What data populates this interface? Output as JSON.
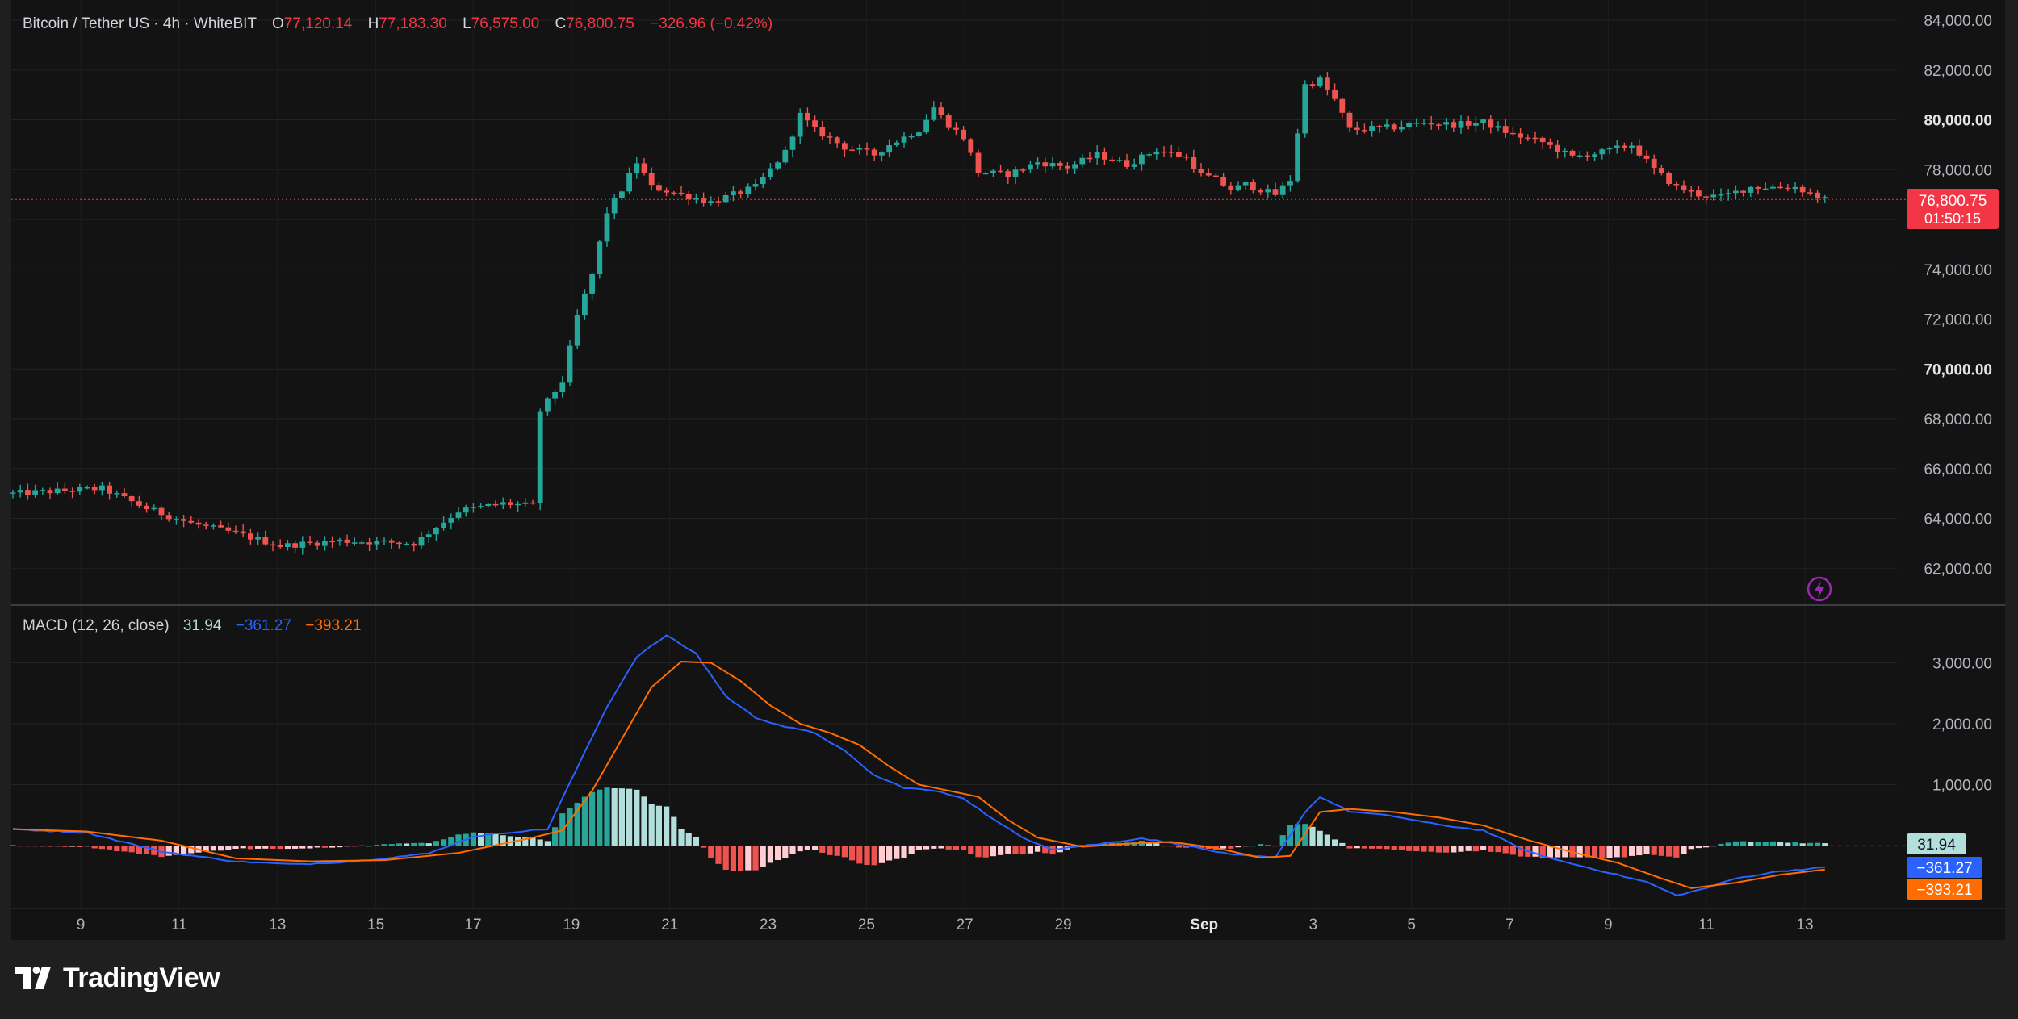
{
  "header": {
    "symbol": "Bitcoin / Tether US · 4h · WhiteBIT",
    "o_label": "O",
    "o_value": "77,120.14",
    "h_label": "H",
    "h_value": "77,183.30",
    "l_label": "L",
    "l_value": "76,575.00",
    "c_label": "C",
    "c_value": "76,800.75",
    "change": "−326.96 (−0.42%)"
  },
  "macd_legend": {
    "title": "MACD (12, 26, close)",
    "hist": "31.94",
    "macd": "−361.27",
    "signal": "−393.21"
  },
  "last_price": {
    "price": "76,800.75",
    "countdown": "01:50:15"
  },
  "macd_badges": {
    "hist": "31.94",
    "macd": "−361.27",
    "signal": "−393.21"
  },
  "brand": {
    "name": "TradingView"
  },
  "colors": {
    "up": "#26a69a",
    "down": "#ef5350",
    "up_light": "#b2dfdb",
    "down_light": "#ffcdd2",
    "macd": "#2962ff",
    "signal": "#ff6d00",
    "price_badge": "#f23645"
  },
  "chart_data": [
    {
      "type": "candlestick",
      "title": "Bitcoin / Tether US · 4h · WhiteBIT",
      "ylim": [
        61000,
        84300
      ],
      "y_ticks": [
        "84,000.00",
        "82,000.00",
        "80,000.00",
        "78,000.00",
        "76,000.00",
        "74,000.00",
        "72,000.00",
        "70,000.00",
        "68,000.00",
        "66,000.00",
        "64,000.00",
        "62,000.00"
      ],
      "x_ticks": [
        "9",
        "11",
        "13",
        "15",
        "17",
        "19",
        "21",
        "23",
        "25",
        "27",
        "29",
        "Sep",
        "3",
        "5",
        "7",
        "9",
        "11",
        "13"
      ],
      "anchors": [
        [
          0,
          65000
        ],
        [
          12,
          65200
        ],
        [
          18,
          64400
        ],
        [
          24,
          63800
        ],
        [
          30,
          63400
        ],
        [
          36,
          62900
        ],
        [
          44,
          63100
        ],
        [
          54,
          63000
        ],
        [
          60,
          64300
        ],
        [
          66,
          64600
        ],
        [
          70,
          64500
        ],
        [
          71,
          68300
        ],
        [
          74,
          69500
        ],
        [
          76,
          72100
        ],
        [
          78,
          73800
        ],
        [
          80,
          76300
        ],
        [
          82,
          77200
        ],
        [
          84,
          78300
        ],
        [
          86,
          77300
        ],
        [
          90,
          77000
        ],
        [
          94,
          76700
        ],
        [
          100,
          77300
        ],
        [
          104,
          78700
        ],
        [
          106,
          80200
        ],
        [
          108,
          79600
        ],
        [
          112,
          78900
        ],
        [
          116,
          78600
        ],
        [
          118,
          79000
        ],
        [
          122,
          79600
        ],
        [
          124,
          80500
        ],
        [
          126,
          79800
        ],
        [
          128,
          79300
        ],
        [
          130,
          77900
        ],
        [
          134,
          77800
        ],
        [
          138,
          78300
        ],
        [
          142,
          78100
        ],
        [
          146,
          78600
        ],
        [
          150,
          78200
        ],
        [
          154,
          78800
        ],
        [
          158,
          78500
        ],
        [
          160,
          77800
        ],
        [
          162,
          77600
        ],
        [
          164,
          77200
        ],
        [
          166,
          77400
        ],
        [
          170,
          77000
        ],
        [
          172,
          77600
        ],
        [
          174,
          81400
        ],
        [
          176,
          81600
        ],
        [
          178,
          80800
        ],
        [
          180,
          79600
        ],
        [
          186,
          79700
        ],
        [
          190,
          79900
        ],
        [
          194,
          79800
        ],
        [
          198,
          79900
        ],
        [
          202,
          79400
        ],
        [
          206,
          79100
        ],
        [
          210,
          78500
        ],
        [
          214,
          78700
        ],
        [
          218,
          79000
        ],
        [
          221,
          78000
        ],
        [
          224,
          77300
        ],
        [
          227,
          77000
        ],
        [
          230,
          76900
        ],
        [
          234,
          77300
        ],
        [
          240,
          77300
        ],
        [
          244,
          76800
        ]
      ]
    },
    {
      "type": "macd",
      "title": "MACD (12, 26, close)",
      "ylim": [
        -1700,
        3650
      ],
      "y_ticks": [
        "3,000.00",
        "2,000.00",
        "1,000.00"
      ],
      "macd_anchors": [
        [
          0,
          270
        ],
        [
          10,
          210
        ],
        [
          20,
          -100
        ],
        [
          30,
          -260
        ],
        [
          38,
          -310
        ],
        [
          46,
          -260
        ],
        [
          56,
          -130
        ],
        [
          62,
          150
        ],
        [
          68,
          230
        ],
        [
          72,
          270
        ],
        [
          76,
          1280
        ],
        [
          80,
          2280
        ],
        [
          84,
          3100
        ],
        [
          88,
          3450
        ],
        [
          92,
          3150
        ],
        [
          96,
          2450
        ],
        [
          100,
          2100
        ],
        [
          104,
          1950
        ],
        [
          108,
          1850
        ],
        [
          112,
          1550
        ],
        [
          116,
          1150
        ],
        [
          120,
          950
        ],
        [
          124,
          900
        ],
        [
          128,
          780
        ],
        [
          132,
          430
        ],
        [
          136,
          130
        ],
        [
          140,
          -60
        ],
        [
          146,
          20
        ],
        [
          152,
          120
        ],
        [
          158,
          0
        ],
        [
          164,
          -150
        ],
        [
          170,
          -200
        ],
        [
          174,
          550
        ],
        [
          176,
          800
        ],
        [
          180,
          560
        ],
        [
          186,
          480
        ],
        [
          192,
          340
        ],
        [
          198,
          250
        ],
        [
          204,
          -100
        ],
        [
          208,
          -240
        ],
        [
          212,
          -360
        ],
        [
          216,
          -480
        ],
        [
          220,
          -600
        ],
        [
          224,
          -820
        ],
        [
          228,
          -700
        ],
        [
          232,
          -540
        ],
        [
          238,
          -420
        ],
        [
          244,
          -361
        ]
      ],
      "signal_anchors": [
        [
          0,
          270
        ],
        [
          10,
          230
        ],
        [
          20,
          80
        ],
        [
          30,
          -210
        ],
        [
          40,
          -260
        ],
        [
          50,
          -240
        ],
        [
          60,
          -120
        ],
        [
          70,
          130
        ],
        [
          74,
          250
        ],
        [
          78,
          900
        ],
        [
          82,
          1750
        ],
        [
          86,
          2600
        ],
        [
          90,
          3020
        ],
        [
          94,
          3000
        ],
        [
          98,
          2700
        ],
        [
          102,
          2300
        ],
        [
          106,
          2000
        ],
        [
          110,
          1850
        ],
        [
          114,
          1650
        ],
        [
          118,
          1300
        ],
        [
          122,
          1000
        ],
        [
          126,
          900
        ],
        [
          130,
          800
        ],
        [
          134,
          420
        ],
        [
          138,
          130
        ],
        [
          144,
          -20
        ],
        [
          150,
          30
        ],
        [
          156,
          60
        ],
        [
          162,
          -40
        ],
        [
          168,
          -200
        ],
        [
          172,
          -170
        ],
        [
          176,
          550
        ],
        [
          180,
          600
        ],
        [
          186,
          550
        ],
        [
          192,
          460
        ],
        [
          198,
          330
        ],
        [
          204,
          90
        ],
        [
          210,
          -110
        ],
        [
          216,
          -280
        ],
        [
          222,
          -540
        ],
        [
          226,
          -700
        ],
        [
          232,
          -610
        ],
        [
          238,
          -480
        ],
        [
          244,
          -393
        ]
      ]
    }
  ]
}
